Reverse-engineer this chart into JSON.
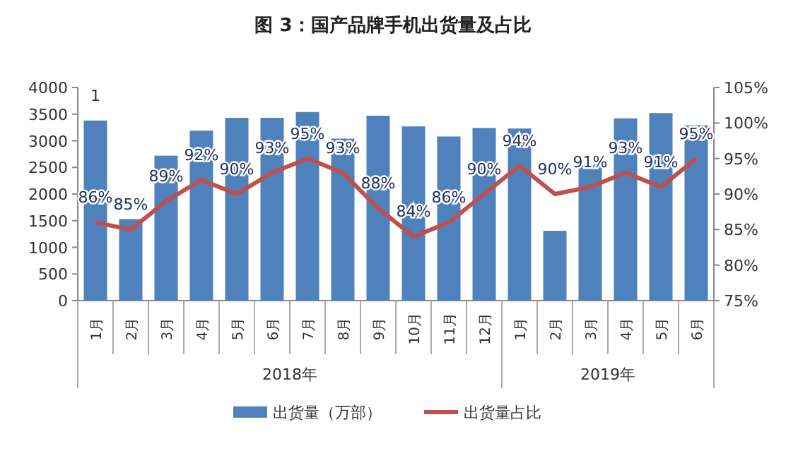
{
  "chart_data": {
    "type": "bar",
    "title": "图 3：国产品牌手机出货量及占比",
    "categories": [
      "1月",
      "2月",
      "3月",
      "4月",
      "5月",
      "6月",
      "7月",
      "8月",
      "9月",
      "10月",
      "11月",
      "12月",
      "1月",
      "2月",
      "3月",
      "4月",
      "5月",
      "6月"
    ],
    "series": [
      {
        "name": "出货量（万部）",
        "type": "bar",
        "color": "#4f81bd",
        "values": [
          3380,
          1530,
          2720,
          3190,
          3430,
          3430,
          3540,
          3040,
          3470,
          3270,
          3080,
          3240,
          3230,
          1310,
          2550,
          3420,
          3520,
          3290
        ]
      },
      {
        "name": "出货量占比",
        "type": "line",
        "axis": "y2",
        "color": "#c0504d",
        "data_labels": true,
        "value_labels": [
          "86%",
          "85%",
          "89%",
          "92%",
          "90%",
          "93%",
          "95%",
          "93%",
          "88%",
          "84%",
          "86%",
          "90%",
          "94%",
          "90%",
          "91%",
          "93%",
          "91%",
          "95%"
        ],
        "values": [
          86,
          85,
          89,
          92,
          90,
          93,
          95,
          93,
          88,
          84,
          86,
          90,
          94,
          90,
          91,
          93,
          91,
          95
        ]
      }
    ],
    "ylim": [
      0,
      4000
    ],
    "yticks": [
      0,
      500,
      1000,
      1500,
      2000,
      2500,
      3000,
      3500,
      4000
    ],
    "y2lim": [
      75,
      105
    ],
    "y2ticks": [
      {
        "value": 75,
        "label": "75%"
      },
      {
        "value": 80,
        "label": "80%"
      },
      {
        "value": 85,
        "label": "85%"
      },
      {
        "value": 90,
        "label": "90%"
      },
      {
        "value": 95,
        "label": "95%"
      },
      {
        "value": 100,
        "label": "100%"
      },
      {
        "value": 105,
        "label": "105%"
      }
    ],
    "annotations": [
      "1",
      "2018年",
      "2019年"
    ],
    "legend": "bottom",
    "grid": false
  }
}
